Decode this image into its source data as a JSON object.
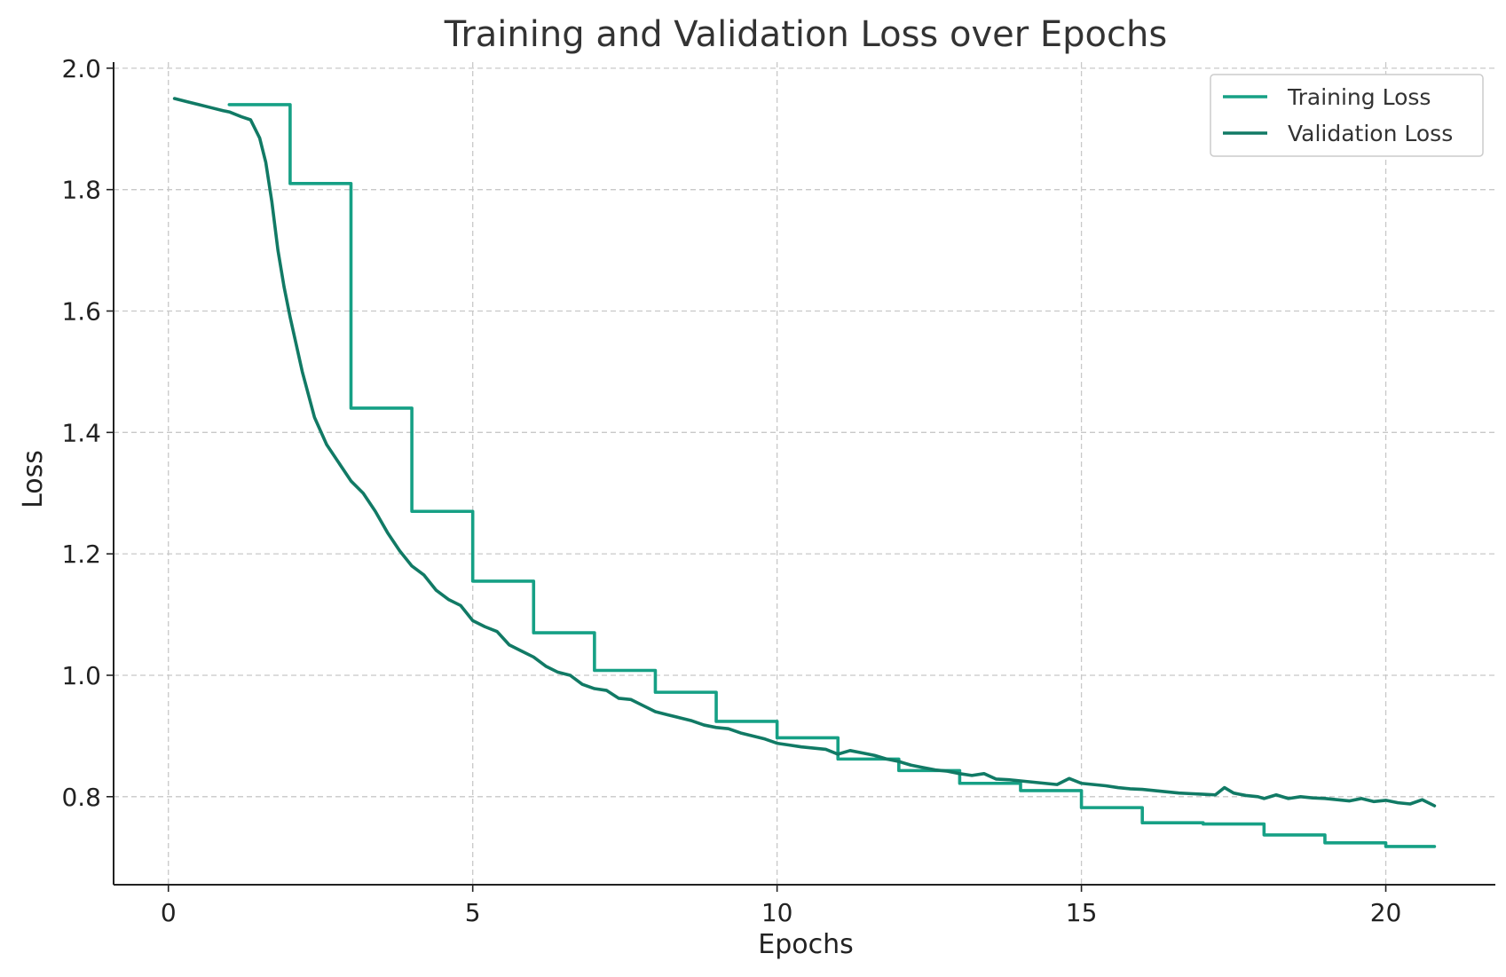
{
  "chart_data": {
    "type": "line",
    "title": "Training and Validation Loss over Epochs",
    "xlabel": "Epochs",
    "ylabel": "Loss",
    "xlim": [
      -0.9,
      21.8
    ],
    "ylim": [
      0.655,
      2.01
    ],
    "xticks": [
      0,
      5,
      10,
      15,
      20
    ],
    "yticks": [
      0.8,
      1.0,
      1.2,
      1.4,
      1.6,
      1.8,
      2.0
    ],
    "xtick_labels": [
      "0",
      "5",
      "10",
      "15",
      "20"
    ],
    "ytick_labels": [
      "0.8",
      "1.0",
      "1.2",
      "1.4",
      "1.6",
      "1.8",
      "2.0"
    ],
    "grid": true,
    "legend_position": "top-right",
    "series": [
      {
        "name": "Training Loss",
        "color": "#16a085",
        "step": true,
        "x": [
          1,
          2,
          3,
          4,
          5,
          6,
          7,
          8,
          9,
          10,
          11,
          12,
          13,
          14,
          15,
          16,
          17,
          18,
          19,
          20
        ],
        "values": [
          1.94,
          1.81,
          1.44,
          1.27,
          1.155,
          1.07,
          1.008,
          0.972,
          0.924,
          0.897,
          0.862,
          0.843,
          0.822,
          0.81,
          0.782,
          0.757,
          0.755,
          0.737,
          0.724,
          0.718
        ],
        "x_end": 20.8
      },
      {
        "name": "Validation Loss",
        "color": "#117a65",
        "x": [
          0.1,
          0.3,
          0.5,
          0.7,
          0.9,
          1.0,
          1.2,
          1.35,
          1.5,
          1.6,
          1.7,
          1.8,
          1.9,
          2.0,
          2.2,
          2.4,
          2.6,
          2.8,
          3.0,
          3.2,
          3.4,
          3.6,
          3.8,
          4.0,
          4.2,
          4.4,
          4.6,
          4.8,
          5.0,
          5.2,
          5.4,
          5.6,
          5.8,
          6.0,
          6.2,
          6.4,
          6.6,
          6.8,
          7.0,
          7.2,
          7.4,
          7.6,
          7.8,
          8.0,
          8.2,
          8.4,
          8.6,
          8.8,
          9.0,
          9.2,
          9.4,
          9.6,
          9.8,
          10.0,
          10.2,
          10.4,
          10.6,
          10.8,
          11.0,
          11.2,
          11.4,
          11.6,
          11.8,
          12.0,
          12.2,
          12.4,
          12.6,
          12.8,
          13.0,
          13.2,
          13.4,
          13.6,
          13.8,
          14.0,
          14.2,
          14.4,
          14.6,
          14.8,
          15.0,
          15.2,
          15.4,
          15.6,
          15.8,
          16.0,
          16.2,
          16.4,
          16.6,
          16.8,
          17.0,
          17.2,
          17.35,
          17.5,
          17.7,
          17.9,
          18.0,
          18.2,
          18.4,
          18.6,
          18.8,
          19.0,
          19.2,
          19.4,
          19.6,
          19.8,
          20.0,
          20.2,
          20.4,
          20.6,
          20.8
        ],
        "values": [
          1.95,
          1.945,
          1.94,
          1.935,
          1.93,
          1.928,
          1.92,
          1.915,
          1.885,
          1.845,
          1.78,
          1.7,
          1.64,
          1.59,
          1.5,
          1.425,
          1.38,
          1.35,
          1.32,
          1.3,
          1.27,
          1.235,
          1.205,
          1.18,
          1.165,
          1.14,
          1.125,
          1.115,
          1.09,
          1.08,
          1.072,
          1.05,
          1.04,
          1.03,
          1.015,
          1.005,
          1.0,
          0.985,
          0.978,
          0.975,
          0.962,
          0.96,
          0.95,
          0.94,
          0.935,
          0.93,
          0.925,
          0.918,
          0.914,
          0.912,
          0.905,
          0.9,
          0.895,
          0.888,
          0.885,
          0.882,
          0.88,
          0.878,
          0.87,
          0.876,
          0.872,
          0.868,
          0.862,
          0.858,
          0.852,
          0.848,
          0.844,
          0.842,
          0.838,
          0.835,
          0.838,
          0.829,
          0.828,
          0.826,
          0.824,
          0.822,
          0.82,
          0.83,
          0.822,
          0.82,
          0.818,
          0.815,
          0.813,
          0.812,
          0.81,
          0.808,
          0.806,
          0.805,
          0.804,
          0.803,
          0.815,
          0.806,
          0.802,
          0.8,
          0.797,
          0.803,
          0.797,
          0.8,
          0.798,
          0.797,
          0.795,
          0.793,
          0.797,
          0.792,
          0.794,
          0.79,
          0.788,
          0.795,
          0.785
        ]
      }
    ]
  }
}
